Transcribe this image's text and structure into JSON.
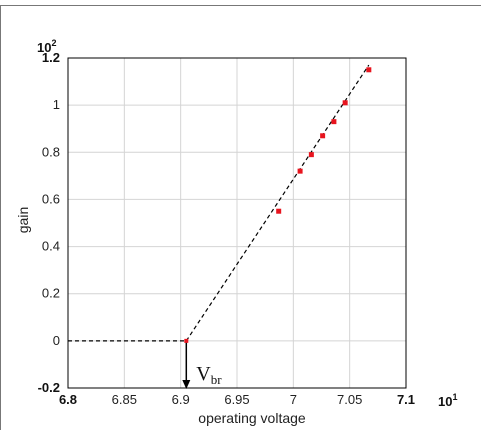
{
  "chart_data": {
    "type": "scatter",
    "xlabel": "operating voltage",
    "ylabel": "gain",
    "x_exponent": {
      "base": "10",
      "power": "1"
    },
    "y_exponent": {
      "base": "10",
      "power": "2"
    },
    "xlim": [
      6.8,
      7.1
    ],
    "ylim": [
      -0.2,
      1.2
    ],
    "x_ticks": [
      "6.8",
      "6.85",
      "6.9",
      "6.95",
      "7",
      "7.05",
      "7.1"
    ],
    "y_ticks": [
      "-0.2",
      "0",
      "0.2",
      "0.4",
      "0.6",
      "0.8",
      "1",
      "1.2"
    ],
    "grid": true,
    "points": [
      {
        "x": 6.987,
        "y": 0.55
      },
      {
        "x": 7.006,
        "y": 0.72
      },
      {
        "x": 7.016,
        "y": 0.79
      },
      {
        "x": 7.026,
        "y": 0.87
      },
      {
        "x": 7.036,
        "y": 0.93
      },
      {
        "x": 7.046,
        "y": 1.01
      },
      {
        "x": 7.067,
        "y": 1.15
      }
    ],
    "fit_line": {
      "x": [
        6.905,
        7.067
      ],
      "y": [
        0.0,
        1.17
      ]
    },
    "baseline": {
      "x": [
        6.8,
        6.905
      ],
      "y": [
        0.0,
        0.0
      ]
    },
    "breakdown_point": {
      "x": 6.905,
      "y": 0.0
    },
    "annotation": {
      "text": "V",
      "subscript": "br",
      "x": 6.905
    },
    "colors": {
      "points": "#e8141e",
      "line": "#000000",
      "grid": "#d4d4d4",
      "frame": "#000000"
    }
  }
}
